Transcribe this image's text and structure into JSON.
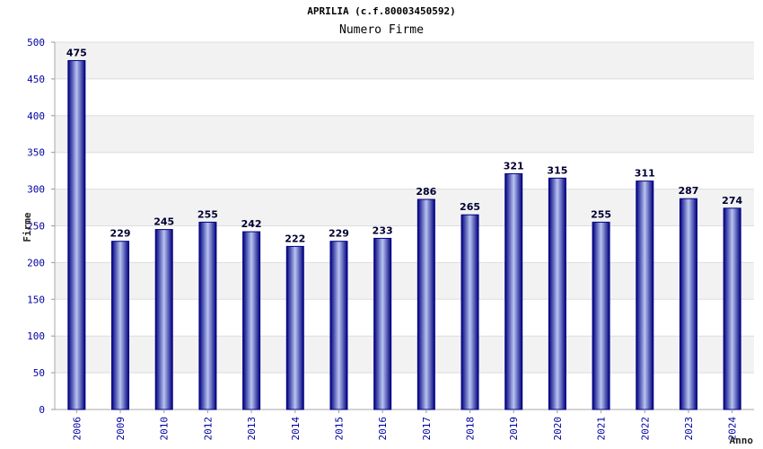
{
  "chart_data": {
    "type": "bar",
    "title": "APRILIA (c.f.80003450592)",
    "subtitle": "Numero Firme",
    "xlabel": "Anno",
    "ylabel": "Firme",
    "ylim": [
      0,
      500
    ],
    "yticks": [
      0,
      50,
      100,
      150,
      200,
      250,
      300,
      350,
      400,
      450,
      500
    ],
    "categories": [
      "2006",
      "2009",
      "2010",
      "2012",
      "2013",
      "2014",
      "2015",
      "2016",
      "2017",
      "2018",
      "2019",
      "2020",
      "2021",
      "2022",
      "2023",
      "2024"
    ],
    "values": [
      475,
      229,
      245,
      255,
      242,
      222,
      229,
      233,
      286,
      265,
      321,
      315,
      255,
      311,
      287,
      274
    ],
    "grid": true,
    "colors": {
      "bar_edge": "#000080",
      "bar_center": "#b8c4f0",
      "band": "#f2f2f2",
      "axis_text": "#0000a0"
    }
  }
}
